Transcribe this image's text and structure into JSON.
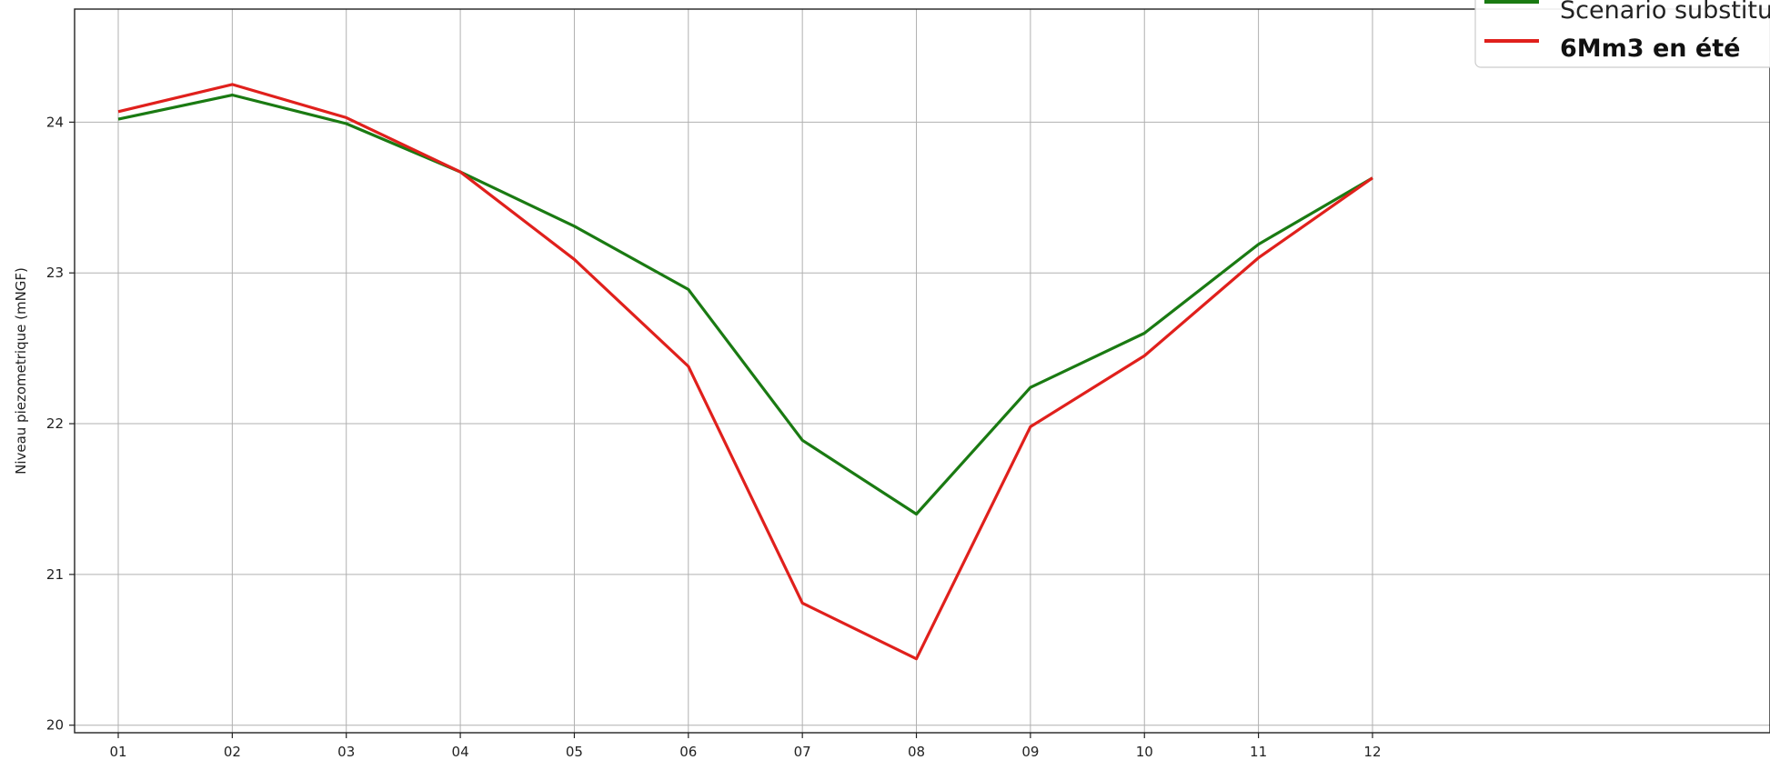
{
  "chart_data": {
    "type": "line",
    "title": "",
    "xlabel": "",
    "ylabel": "Niveau piezometrique (mNGF)",
    "categories": [
      "01",
      "02",
      "03",
      "04",
      "05",
      "06",
      "07",
      "08",
      "09",
      "10",
      "11",
      "12"
    ],
    "ylim": [
      19.95,
      24.75
    ],
    "yticks": [
      20,
      21,
      22,
      23,
      24
    ],
    "grid": true,
    "legend_position": "top-right",
    "series": [
      {
        "name": "Scenario substitu",
        "color": "#1a7a12",
        "values": [
          24.02,
          24.18,
          23.99,
          23.67,
          23.31,
          22.89,
          21.89,
          21.4,
          22.24,
          22.6,
          23.19,
          23.63
        ]
      },
      {
        "name": "6Mm3 en été",
        "color": "#e0201c",
        "values": [
          24.07,
          24.25,
          24.03,
          23.67,
          23.09,
          22.38,
          20.81,
          20.44,
          21.98,
          22.45,
          23.1,
          23.63
        ]
      }
    ]
  }
}
